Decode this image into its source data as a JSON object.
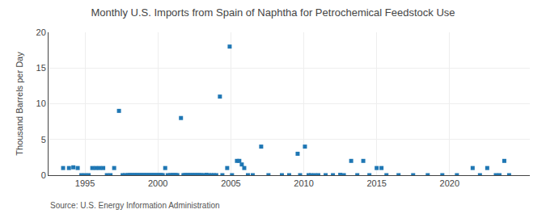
{
  "chart_data": {
    "type": "scatter",
    "title": "Monthly U.S. Imports from Spain of Naphtha for Petrochemical Feedstock Use",
    "ylabel": "Thousand Barrels per Day",
    "annotations": [
      "Source: U.S. Energy Information Administration"
    ],
    "marker": "square",
    "grid": true,
    "xlim": [
      1992.5,
      2025.5
    ],
    "xticks": [
      1995,
      2000,
      2005,
      2010,
      2015,
      2020
    ],
    "ylim": [
      0,
      20
    ],
    "yticks": [
      0,
      5,
      10,
      15,
      20
    ],
    "x": [
      1993.5,
      1993.9,
      1994.2,
      1994.5,
      1994.75,
      1995.0,
      1995.25,
      1995.5,
      1995.75,
      1996.0,
      1996.25,
      1996.5,
      1996.75,
      1997.0,
      1997.33,
      1997.58,
      1997.75,
      1997.92,
      1998.0,
      1998.08,
      1998.17,
      1998.25,
      1998.33,
      1998.42,
      1998.5,
      1998.58,
      1998.67,
      1998.75,
      1998.83,
      1998.92,
      1999.0,
      1999.08,
      1999.17,
      1999.25,
      1999.33,
      1999.42,
      1999.5,
      1999.58,
      1999.67,
      1999.75,
      1999.83,
      1999.92,
      2000.0,
      2000.08,
      2000.17,
      2000.25,
      2000.33,
      2000.5,
      2000.67,
      2000.83,
      2000.92,
      2001.0,
      2001.08,
      2001.17,
      2001.25,
      2001.33,
      2001.58,
      2001.75,
      2001.83,
      2001.92,
      2002.0,
      2002.08,
      2002.17,
      2002.25,
      2002.33,
      2002.42,
      2002.5,
      2002.58,
      2002.67,
      2002.75,
      2002.83,
      2002.92,
      2003.0,
      2003.17,
      2003.33,
      2003.5,
      2003.67,
      2003.83,
      2004.0,
      2004.25,
      2004.42,
      2004.75,
      2004.92,
      2005.08,
      2005.42,
      2005.58,
      2005.75,
      2005.92,
      2006.17,
      2006.5,
      2007.08,
      2007.58,
      2008.5,
      2009.0,
      2009.58,
      2009.75,
      2010.08,
      2010.33,
      2010.5,
      2010.75,
      2011.0,
      2011.5,
      2012.0,
      2012.5,
      2012.75,
      2013.25,
      2013.67,
      2014.08,
      2014.5,
      2015.0,
      2015.33,
      2015.67,
      2016.5,
      2017.5,
      2018.5,
      2019.5,
      2020.5,
      2021.58,
      2022.08,
      2022.58,
      2023.17,
      2023.42,
      2023.75,
      2024.08
    ],
    "values": [
      1.0,
      1.0,
      1.1,
      1.0,
      0.0,
      0.0,
      0.0,
      1.0,
      1.0,
      1.0,
      1.0,
      0.0,
      0.0,
      1.0,
      9.0,
      0.0,
      0.0,
      0.0,
      0.0,
      0.0,
      0.0,
      0.0,
      0.0,
      0.0,
      0.0,
      0.0,
      0.0,
      0.0,
      0.0,
      0.0,
      0.0,
      0.0,
      0.0,
      0.0,
      0.0,
      0.0,
      0.0,
      0.0,
      0.0,
      0.0,
      0.0,
      0.0,
      0.0,
      0.0,
      0.0,
      0.0,
      0.0,
      1.0,
      0.0,
      0.0,
      0.0,
      0.0,
      0.0,
      0.0,
      0.0,
      0.0,
      8.0,
      0.0,
      0.0,
      0.0,
      0.0,
      0.0,
      0.0,
      0.0,
      0.0,
      0.0,
      0.0,
      0.0,
      0.0,
      0.0,
      0.0,
      0.0,
      0.0,
      0.0,
      0.05,
      0.0,
      0.0,
      0.0,
      0.0,
      11.0,
      0.0,
      1.0,
      18.0,
      0.0,
      2.0,
      2.0,
      1.5,
      1.0,
      0.0,
      0.0,
      4.0,
      0.0,
      0.0,
      0.0,
      3.0,
      0.0,
      4.0,
      0.0,
      0.0,
      0.0,
      0.0,
      0.0,
      0.0,
      0.05,
      0.0,
      2.0,
      0.0,
      2.0,
      0.0,
      1.0,
      1.0,
      0.0,
      0.0,
      0.0,
      0.0,
      0.0,
      0.0,
      1.0,
      0.0,
      1.0,
      0.0,
      0.0,
      2.0,
      0.0
    ]
  }
}
